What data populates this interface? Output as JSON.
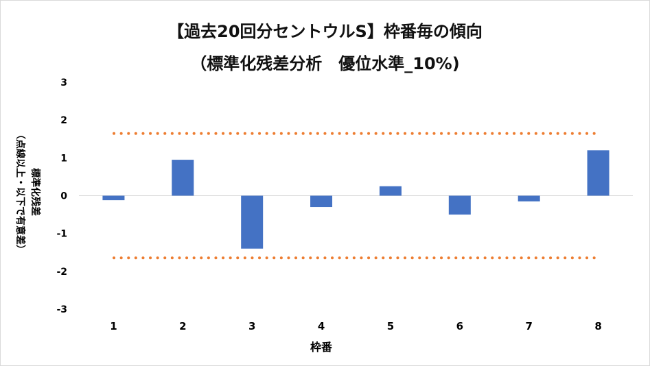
{
  "chart_data": {
    "type": "bar",
    "title": "【過去20回分セントウルS】枠番毎の傾向",
    "subtitle": "（標準化残差分析　優位水準_10%)",
    "xlabel": "枠番",
    "ylabel": "標準化残差",
    "ylabel_note": "（点線以上・以下で有意差）",
    "categories": [
      "1",
      "2",
      "3",
      "4",
      "5",
      "6",
      "7",
      "8"
    ],
    "values": [
      -0.12,
      0.95,
      -1.4,
      -0.3,
      0.25,
      -0.5,
      -0.15,
      1.2
    ],
    "ylim": [
      -3,
      3
    ],
    "yticks": [
      "3",
      "2",
      "1",
      "0",
      "-1",
      "-2",
      "-3"
    ],
    "threshold_lines": [
      1.645,
      -1.645
    ],
    "bar_color": "#4472c4",
    "threshold_color": "#ed7d31",
    "grid": false,
    "legend": "none"
  }
}
